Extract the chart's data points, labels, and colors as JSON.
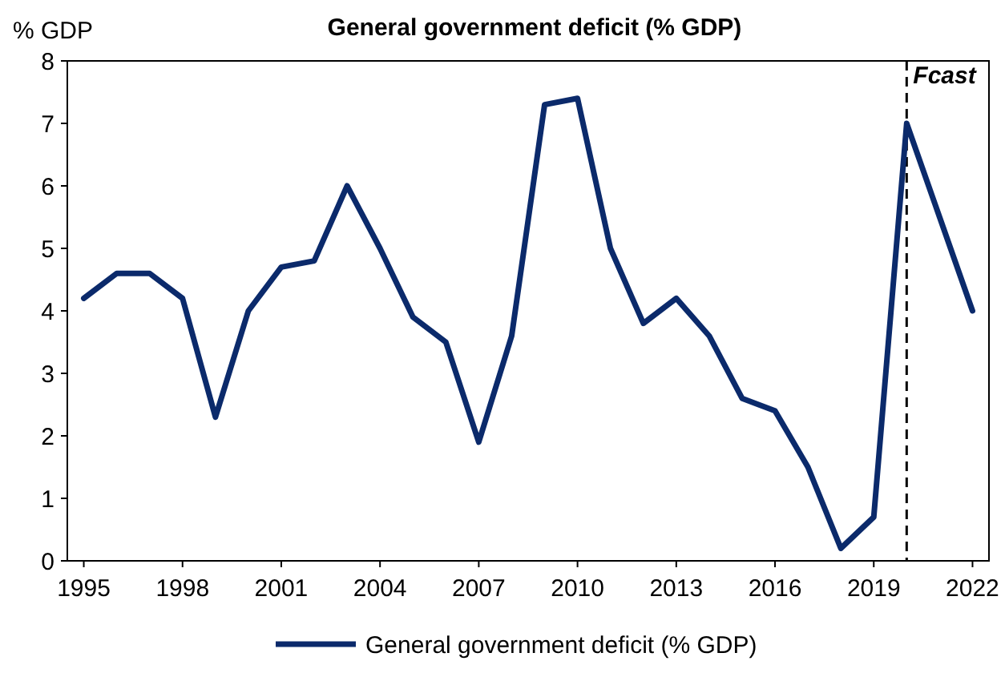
{
  "chart_data": {
    "type": "line",
    "title": "General government deficit (% GDP)",
    "ylabel": "% GDP",
    "x": [
      1995,
      1996,
      1997,
      1998,
      1999,
      2000,
      2001,
      2002,
      2003,
      2004,
      2005,
      2006,
      2007,
      2008,
      2009,
      2010,
      2011,
      2012,
      2013,
      2014,
      2015,
      2016,
      2017,
      2018,
      2019,
      2020,
      2021,
      2022
    ],
    "series": [
      {
        "name": "General government deficit (% GDP)",
        "color": "#0b2a6b",
        "values": [
          4.2,
          4.6,
          4.6,
          4.2,
          2.3,
          4.0,
          4.7,
          4.8,
          6.0,
          5.0,
          3.9,
          3.5,
          1.9,
          3.6,
          7.3,
          7.4,
          5.0,
          3.8,
          4.2,
          3.6,
          2.6,
          2.4,
          1.5,
          0.2,
          0.7,
          7.0,
          5.5,
          4.0
        ]
      }
    ],
    "xlim": [
      1994.5,
      2022.5
    ],
    "xticks": [
      1995,
      1998,
      2001,
      2004,
      2007,
      2010,
      2013,
      2016,
      2019,
      2022
    ],
    "ylim": [
      0,
      8
    ],
    "yticks": [
      0,
      1,
      2,
      3,
      4,
      5,
      6,
      7,
      8
    ],
    "ref_lines": [
      {
        "axis": "x",
        "value": 2020,
        "label": "Fcast",
        "line_style": "dashed",
        "color": "#000000"
      }
    ],
    "grid": false,
    "legend": "bottom",
    "marker": "none",
    "line_style": "solid"
  }
}
